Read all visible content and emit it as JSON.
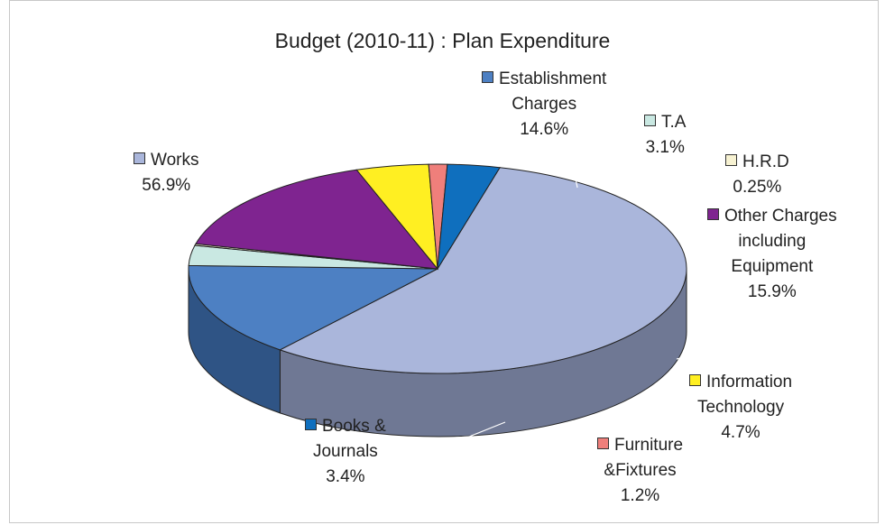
{
  "chart_data": {
    "type": "pie",
    "title": "Budget (2010-11) : Plan Expenditure",
    "slices": [
      {
        "name": "Works",
        "value": 56.9,
        "label": "56.9%",
        "color": "#aab6db",
        "side": "#6f7894"
      },
      {
        "name": "Establishment Charges",
        "value": 14.6,
        "label": "14.6%",
        "color": "#4d80c3",
        "side": "#2f5485"
      },
      {
        "name": "T.A",
        "value": 3.1,
        "label": "3.1%",
        "color": "#c9e8e2",
        "side": "#8ea8a3"
      },
      {
        "name": "H.R.D",
        "value": 0.25,
        "label": "0.25%",
        "color": "#f7f2d2",
        "side": "#b9b497"
      },
      {
        "name": "Other Charges including Equipment",
        "value": 15.9,
        "label": "15.9%",
        "color": "#7f2490",
        "side": "#4a1569"
      },
      {
        "name": "Information Technology",
        "value": 4.7,
        "label": "4.7%",
        "color": "#ffef22",
        "side": "#a89c30"
      },
      {
        "name": "Furniture &Fixtures",
        "value": 1.2,
        "label": "1.2%",
        "color": "#ef7f7b",
        "side": "#9a3c38"
      },
      {
        "name": "Books & Journals",
        "value": 3.4,
        "label": "3.4%",
        "color": "#0f6fbe",
        "side": "#1e4a80"
      }
    ],
    "labels": {
      "works": {
        "line1": "Works",
        "pct": "56.9%"
      },
      "establishment": {
        "line1": "Establishment",
        "line2": "Charges",
        "pct": "14.6%"
      },
      "ta": {
        "line1": "T.A",
        "pct": "3.1%"
      },
      "hrd": {
        "line1": "H.R.D",
        "pct": "0.25%"
      },
      "other": {
        "line1": "Other Charges",
        "line2": "including",
        "line3": "Equipment",
        "pct": "15.9%"
      },
      "it": {
        "line1": "Information",
        "line2": "Technology",
        "pct": "4.7%"
      },
      "furniture": {
        "line1": "Furniture",
        "line2": "&Fixtures",
        "pct": "1.2%"
      },
      "books": {
        "line1": "Books &",
        "line2": "Journals",
        "pct": "3.4%"
      }
    }
  }
}
